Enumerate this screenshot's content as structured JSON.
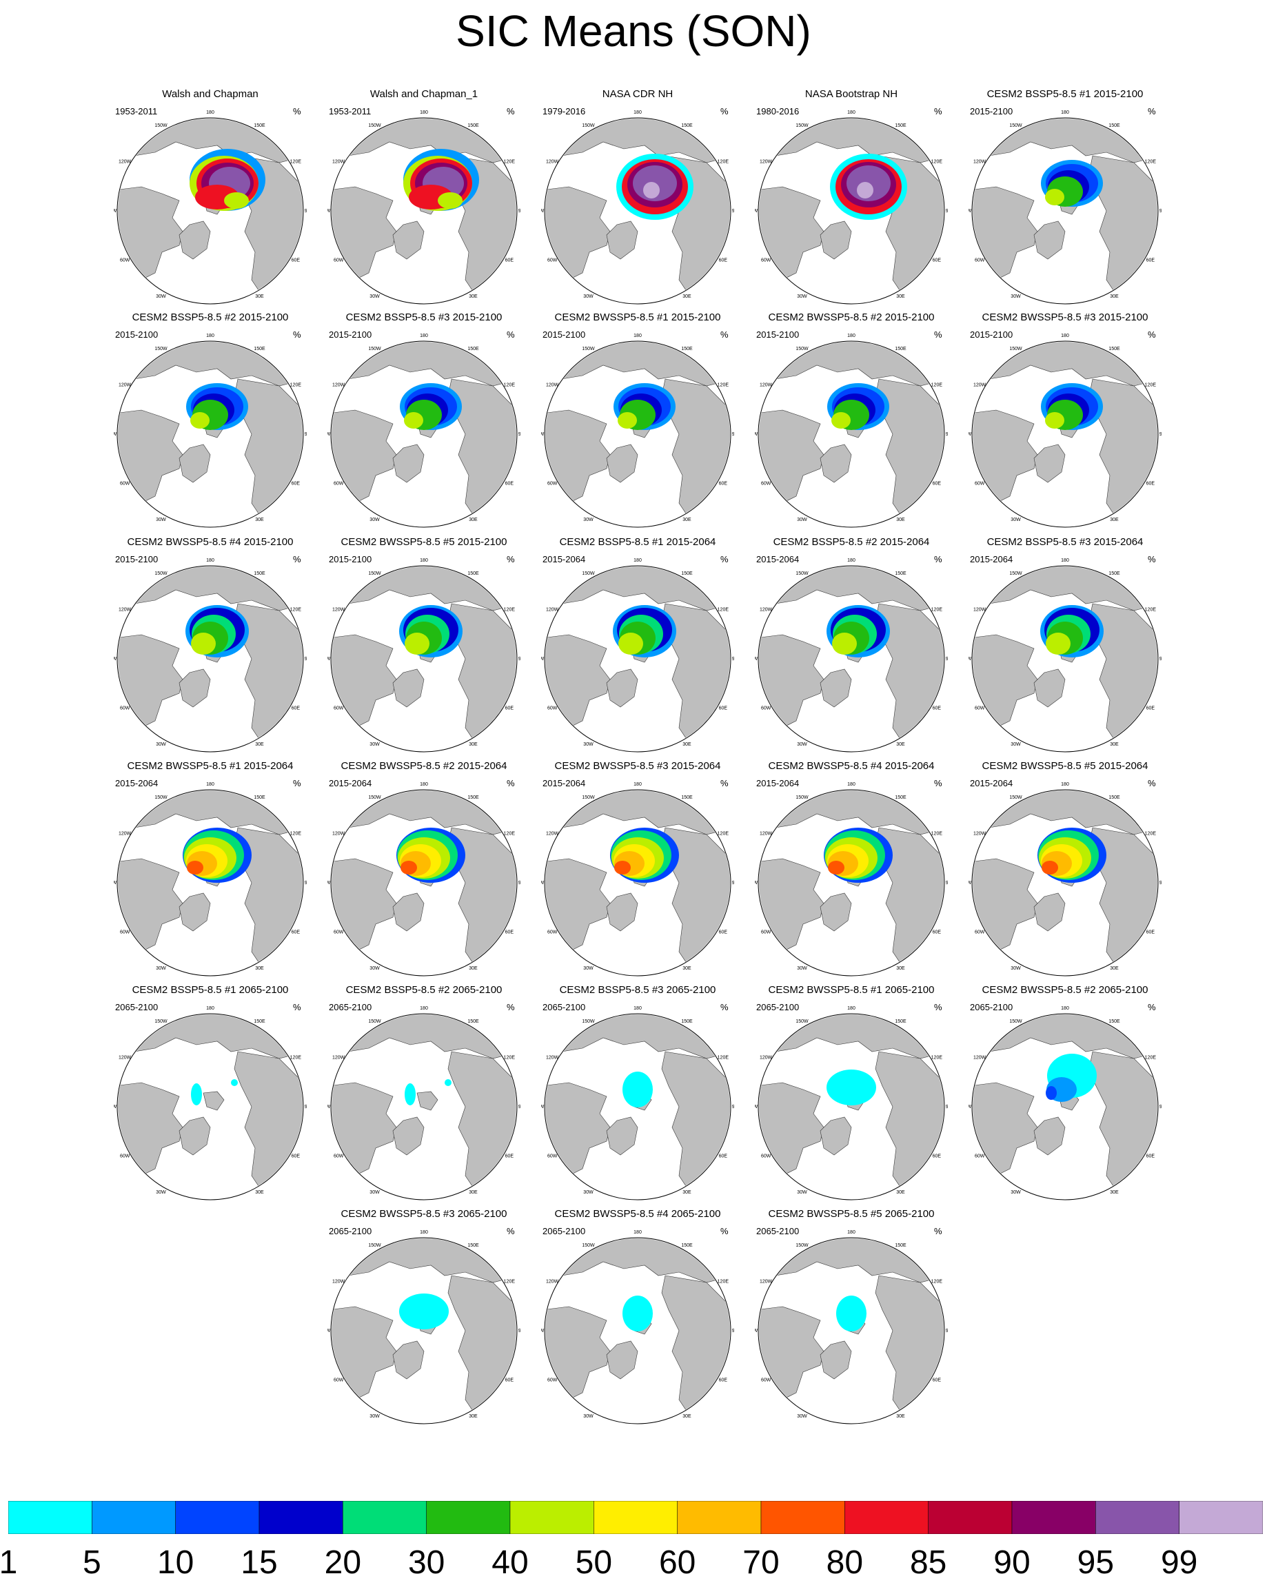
{
  "title": "SIC Means (SON)",
  "unit": "%",
  "lon_labels": [
    "180",
    "150E",
    "120E",
    "90E",
    "60E",
    "30E",
    "0",
    "30W",
    "60W",
    "90W",
    "120W",
    "150W"
  ],
  "colors": {
    "land": "#bebebe",
    "ocean": "#ffffff",
    "coast": "#000000"
  },
  "colorbar": {
    "colors": [
      "#00ffff",
      "#0099ff",
      "#0044ff",
      "#0000cc",
      "#00dd77",
      "#22bb11",
      "#bbee00",
      "#ffee00",
      "#ffbb00",
      "#ff5500",
      "#ee1122",
      "#bb0033",
      "#880066",
      "#8855aa",
      "#c4a9d6"
    ],
    "labels": [
      "1",
      "5",
      "10",
      "15",
      "20",
      "30",
      "40",
      "50",
      "60",
      "70",
      "80",
      "85",
      "90",
      "95",
      "99"
    ]
  },
  "panels": [
    {
      "title": "Walsh and Chapman",
      "period": "1953-2011",
      "pattern": "obs"
    },
    {
      "title": "Walsh and Chapman_1",
      "period": "1953-2011",
      "pattern": "obs"
    },
    {
      "title": "NASA CDR NH",
      "period": "1979-2016",
      "pattern": "sat"
    },
    {
      "title": "NASA Bootstrap NH",
      "period": "1980-2016",
      "pattern": "sat"
    },
    {
      "title": "CESM2 BSSP5-8.5 #1 2015-2100",
      "period": "2015-2100",
      "pattern": "mid"
    },
    {
      "title": "CESM2 BSSP5-8.5 #2 2015-2100",
      "period": "2015-2100",
      "pattern": "mid"
    },
    {
      "title": "CESM2 BSSP5-8.5 #3 2015-2100",
      "period": "2015-2100",
      "pattern": "mid"
    },
    {
      "title": "CESM2 BWSSP5-8.5 #1 2015-2100",
      "period": "2015-2100",
      "pattern": "mid"
    },
    {
      "title": "CESM2 BWSSP5-8.5 #2 2015-2100",
      "period": "2015-2100",
      "pattern": "mid"
    },
    {
      "title": "CESM2 BWSSP5-8.5 #3 2015-2100",
      "period": "2015-2100",
      "pattern": "mid"
    },
    {
      "title": "CESM2 BWSSP5-8.5 #4 2015-2100",
      "period": "2015-2100",
      "pattern": "mid2"
    },
    {
      "title": "CESM2 BWSSP5-8.5 #5 2015-2100",
      "period": "2015-2100",
      "pattern": "mid2"
    },
    {
      "title": "CESM2 BSSP5-8.5 #1 2015-2064",
      "period": "2015-2064",
      "pattern": "mid2"
    },
    {
      "title": "CESM2 BSSP5-8.5 #2 2015-2064",
      "period": "2015-2064",
      "pattern": "mid2"
    },
    {
      "title": "CESM2 BSSP5-8.5 #3 2015-2064",
      "period": "2015-2064",
      "pattern": "mid2"
    },
    {
      "title": "CESM2 BWSSP5-8.5 #1 2015-2064",
      "period": "2015-2064",
      "pattern": "high"
    },
    {
      "title": "CESM2 BWSSP5-8.5 #2 2015-2064",
      "period": "2015-2064",
      "pattern": "high"
    },
    {
      "title": "CESM2 BWSSP5-8.5 #3 2015-2064",
      "period": "2015-2064",
      "pattern": "high"
    },
    {
      "title": "CESM2 BWSSP5-8.5 #4 2015-2064",
      "period": "2015-2064",
      "pattern": "high"
    },
    {
      "title": "CESM2 BWSSP5-8.5 #5 2015-2064",
      "period": "2015-2064",
      "pattern": "high"
    },
    {
      "title": "CESM2 BSSP5-8.5 #1 2065-2100",
      "period": "2065-2100",
      "pattern": "low1"
    },
    {
      "title": "CESM2 BSSP5-8.5 #2 2065-2100",
      "period": "2065-2100",
      "pattern": "low1"
    },
    {
      "title": "CESM2 BSSP5-8.5 #3 2065-2100",
      "period": "2065-2100",
      "pattern": "low2"
    },
    {
      "title": "CESM2 BWSSP5-8.5 #1 2065-2100",
      "period": "2065-2100",
      "pattern": "low3"
    },
    {
      "title": "CESM2 BWSSP5-8.5 #2 2065-2100",
      "period": "2065-2100",
      "pattern": "low4"
    },
    {
      "title": "CESM2 BWSSP5-8.5 #3 2065-2100",
      "period": "2065-2100",
      "pattern": "low3"
    },
    {
      "title": "CESM2 BWSSP5-8.5 #4 2065-2100",
      "period": "2065-2100",
      "pattern": "low2"
    },
    {
      "title": "CESM2 BWSSP5-8.5 #5 2065-2100",
      "period": "2065-2100",
      "pattern": "low2"
    }
  ]
}
